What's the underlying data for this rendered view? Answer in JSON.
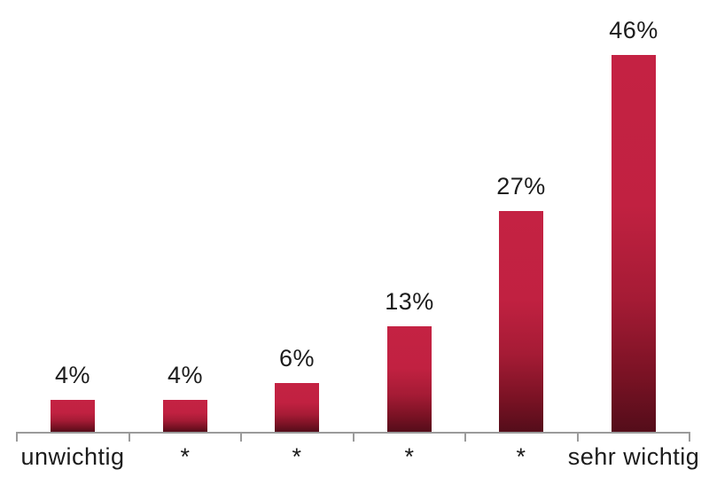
{
  "chart_data": {
    "type": "bar",
    "categories": [
      "unwichtig",
      "*",
      "*",
      "*",
      "*",
      "sehr wichtig"
    ],
    "values": [
      4,
      4,
      6,
      13,
      27,
      46
    ],
    "value_labels": [
      "4%",
      "4%",
      "6%",
      "13%",
      "27%",
      "46%"
    ],
    "title": "",
    "xlabel": "",
    "ylabel": "",
    "ylim": [
      0,
      46
    ],
    "grid": false,
    "legend": null,
    "colors": {
      "bar_top": "#c42243",
      "bar_bottom": "#540d1a",
      "axis": "#9b9b9b",
      "text": "#1c1c1c",
      "background": "#ffffff"
    }
  }
}
